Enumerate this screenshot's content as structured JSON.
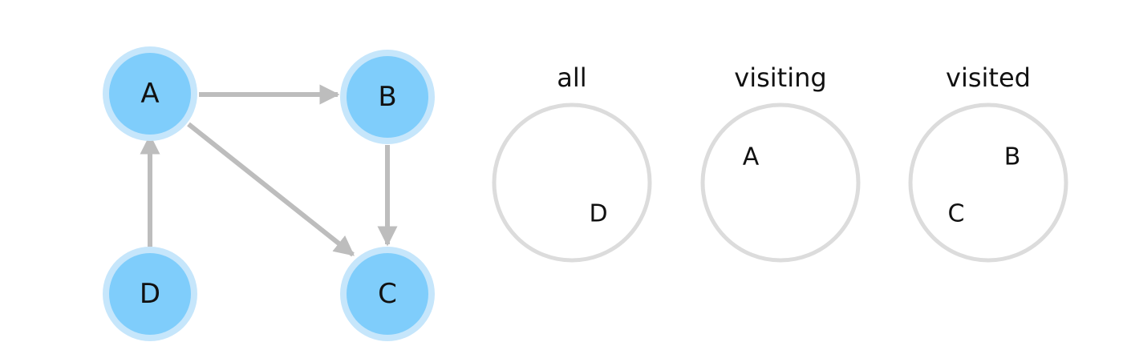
{
  "graph": {
    "node_color": "#7fcdfb",
    "node_halo_color": "#c6e6fb",
    "edge_color": "#bdbdbd",
    "nodes": [
      {
        "id": "A",
        "label": "A"
      },
      {
        "id": "B",
        "label": "B"
      },
      {
        "id": "C",
        "label": "C"
      },
      {
        "id": "D",
        "label": "D"
      }
    ],
    "edges": [
      {
        "from": "A",
        "to": "B"
      },
      {
        "from": "A",
        "to": "C"
      },
      {
        "from": "B",
        "to": "C"
      },
      {
        "from": "D",
        "to": "A"
      }
    ]
  },
  "sets": {
    "ring_color": "#dcdcdc",
    "items": [
      {
        "title": "all",
        "members": [
          "D"
        ]
      },
      {
        "title": "visiting",
        "members": [
          "A"
        ]
      },
      {
        "title": "visited",
        "members": [
          "B",
          "C"
        ]
      }
    ]
  }
}
